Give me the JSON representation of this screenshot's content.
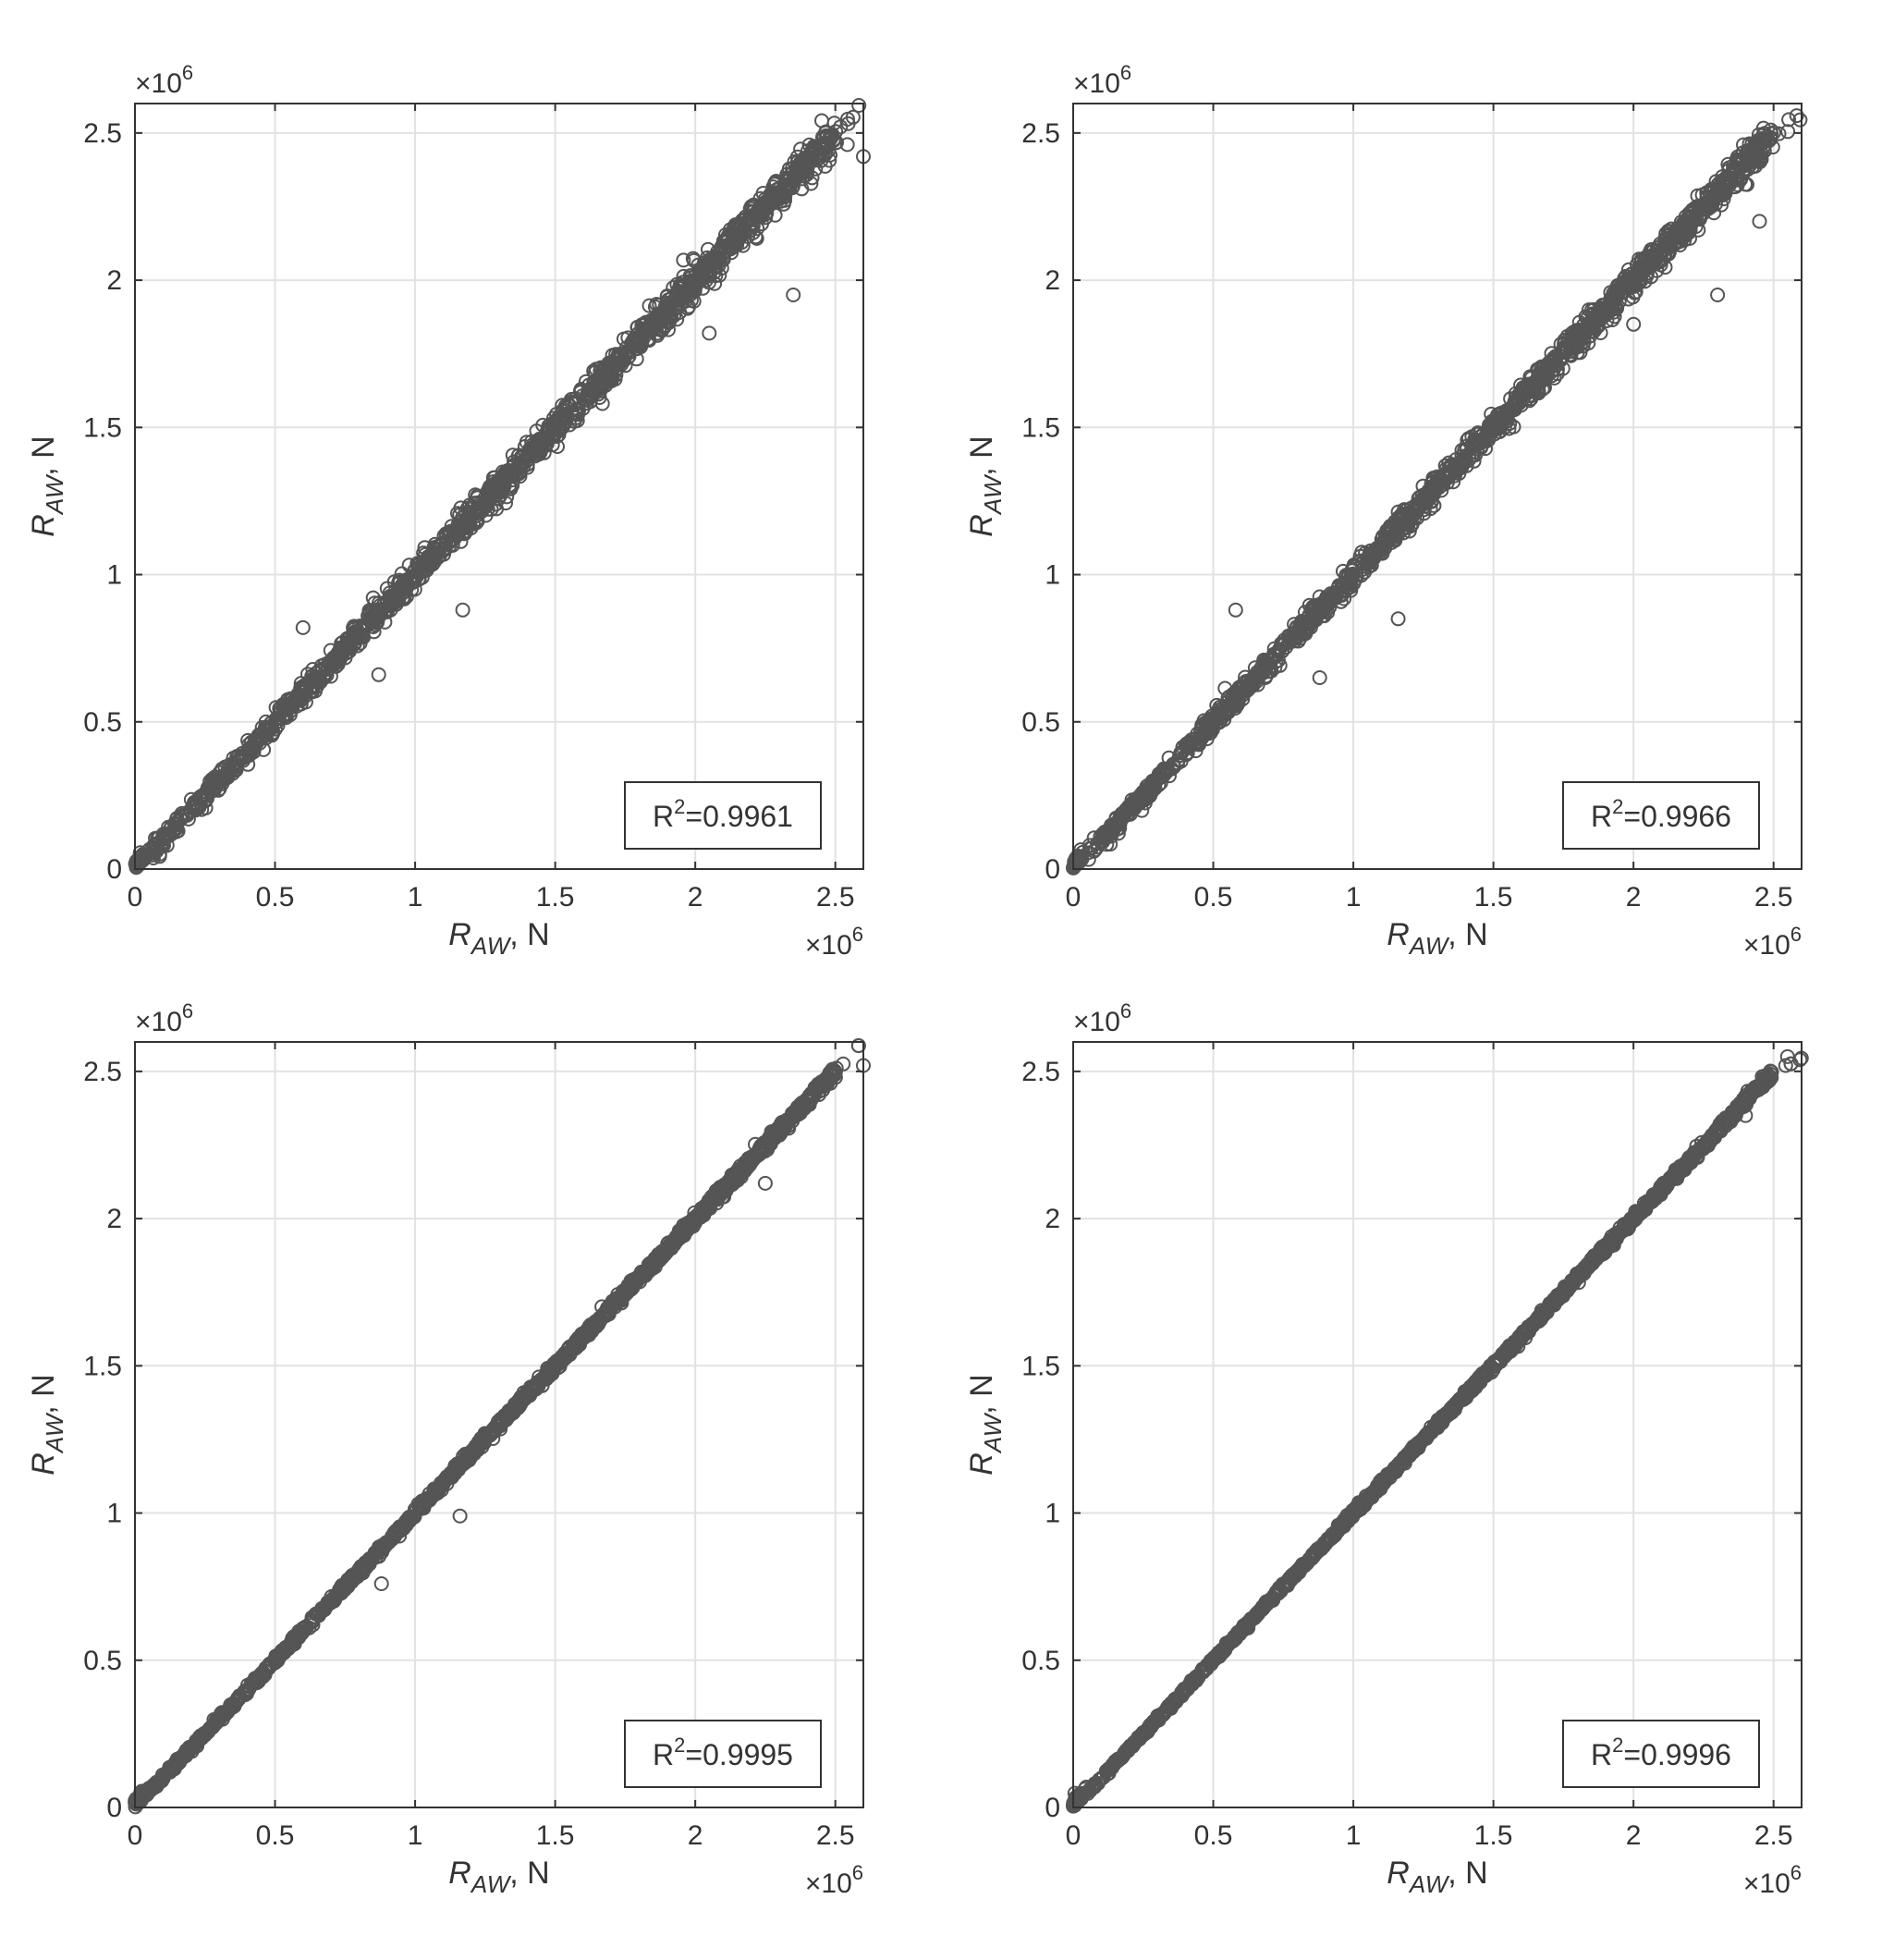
{
  "chart_data": [
    {
      "type": "scatter",
      "title": "",
      "xlabel": "R_AW, N",
      "ylabel": "R_AW, N",
      "xlim": [
        0,
        2.6
      ],
      "ylim": [
        0,
        2.6
      ],
      "x_ticks": [
        "0",
        "0.5",
        "1",
        "1.5",
        "2",
        "2.5"
      ],
      "y_ticks": [
        "0",
        "0.5",
        "1",
        "1.5",
        "2",
        "2.5"
      ],
      "x_multiplier": "×10^6",
      "y_multiplier": "×10^6",
      "grid": true,
      "marker": "open-circle",
      "annotation": {
        "base": "R",
        "sup": "2",
        "text": "=0.9961",
        "placement": "bottom-right"
      },
      "series": [
        {
          "x": [
            0.05,
            0.5,
            1.0,
            1.5,
            2.0,
            2.5,
            2.6
          ],
          "y": [
            0.05,
            0.5,
            1.0,
            1.5,
            2.0,
            2.5,
            2.58
          ]
        }
      ],
      "outliers": [
        {
          "x": 0.6,
          "y": 0.82
        },
        {
          "x": 1.17,
          "y": 0.88
        },
        {
          "x": 0.87,
          "y": 0.66
        },
        {
          "x": 2.05,
          "y": 1.82
        },
        {
          "x": 2.35,
          "y": 1.95
        },
        {
          "x": 2.6,
          "y": 2.42
        }
      ]
    },
    {
      "type": "scatter",
      "title": "",
      "xlabel": "R_AW, N",
      "ylabel": "R_AW, N",
      "xlim": [
        0,
        2.6
      ],
      "ylim": [
        0,
        2.6
      ],
      "x_ticks": [
        "0",
        "0.5",
        "1",
        "1.5",
        "2",
        "2.5"
      ],
      "y_ticks": [
        "0",
        "0.5",
        "1",
        "1.5",
        "2",
        "2.5"
      ],
      "x_multiplier": "×10^6",
      "y_multiplier": "×10^6",
      "grid": true,
      "marker": "open-circle",
      "annotation": {
        "base": "R",
        "sup": "2",
        "text": "=0.9966",
        "placement": "bottom-right"
      },
      "series": [
        {
          "x": [
            0.05,
            0.5,
            1.0,
            1.5,
            2.0,
            2.5,
            2.6
          ],
          "y": [
            0.05,
            0.5,
            1.0,
            1.5,
            2.0,
            2.5,
            2.55
          ]
        }
      ],
      "outliers": [
        {
          "x": 0.58,
          "y": 0.88
        },
        {
          "x": 1.16,
          "y": 0.85
        },
        {
          "x": 0.88,
          "y": 0.65
        },
        {
          "x": 2.0,
          "y": 1.85
        },
        {
          "x": 2.3,
          "y": 1.95
        },
        {
          "x": 2.45,
          "y": 2.2
        }
      ]
    },
    {
      "type": "scatter",
      "title": "",
      "xlabel": "R_AW, N",
      "ylabel": "R_AW, N",
      "xlim": [
        0,
        2.6
      ],
      "ylim": [
        0,
        2.6
      ],
      "x_ticks": [
        "0",
        "0.5",
        "1",
        "1.5",
        "2",
        "2.5"
      ],
      "y_ticks": [
        "0",
        "0.5",
        "1",
        "1.5",
        "2",
        "2.5"
      ],
      "x_multiplier": "×10^6",
      "y_multiplier": "×10^6",
      "grid": true,
      "marker": "open-circle",
      "annotation": {
        "base": "R",
        "sup": "2",
        "text": "=0.9995",
        "placement": "bottom-right"
      },
      "series": [
        {
          "x": [
            0.05,
            0.5,
            1.0,
            1.5,
            2.0,
            2.5,
            2.6
          ],
          "y": [
            0.05,
            0.5,
            1.0,
            1.5,
            2.0,
            2.5,
            2.6
          ]
        }
      ],
      "outliers": [
        {
          "x": 1.16,
          "y": 0.99
        },
        {
          "x": 0.88,
          "y": 0.76
        },
        {
          "x": 2.25,
          "y": 2.12
        },
        {
          "x": 2.6,
          "y": 2.52
        }
      ]
    },
    {
      "type": "scatter",
      "title": "",
      "xlabel": "R_AW, N",
      "ylabel": "R_AW, N",
      "xlim": [
        0,
        2.6
      ],
      "ylim": [
        0,
        2.6
      ],
      "x_ticks": [
        "0",
        "0.5",
        "1",
        "1.5",
        "2",
        "2.5"
      ],
      "y_ticks": [
        "0",
        "0.5",
        "1",
        "1.5",
        "2",
        "2.5"
      ],
      "x_multiplier": "×10^6",
      "y_multiplier": "×10^6",
      "grid": true,
      "marker": "open-circle",
      "annotation": {
        "base": "R",
        "sup": "2",
        "text": "=0.9996",
        "placement": "bottom-right"
      },
      "series": [
        {
          "x": [
            0.05,
            0.5,
            1.0,
            1.5,
            2.0,
            2.5,
            2.6
          ],
          "y": [
            0.05,
            0.5,
            1.0,
            1.5,
            2.0,
            2.5,
            2.55
          ]
        }
      ],
      "outliers": [
        {
          "x": 2.55,
          "y": 2.55
        },
        {
          "x": 2.4,
          "y": 2.35
        }
      ]
    }
  ],
  "style": {
    "marker_color": "#555555",
    "axis_color": "#333333",
    "grid_color": "#e2e2e2",
    "text_color": "#333333"
  }
}
